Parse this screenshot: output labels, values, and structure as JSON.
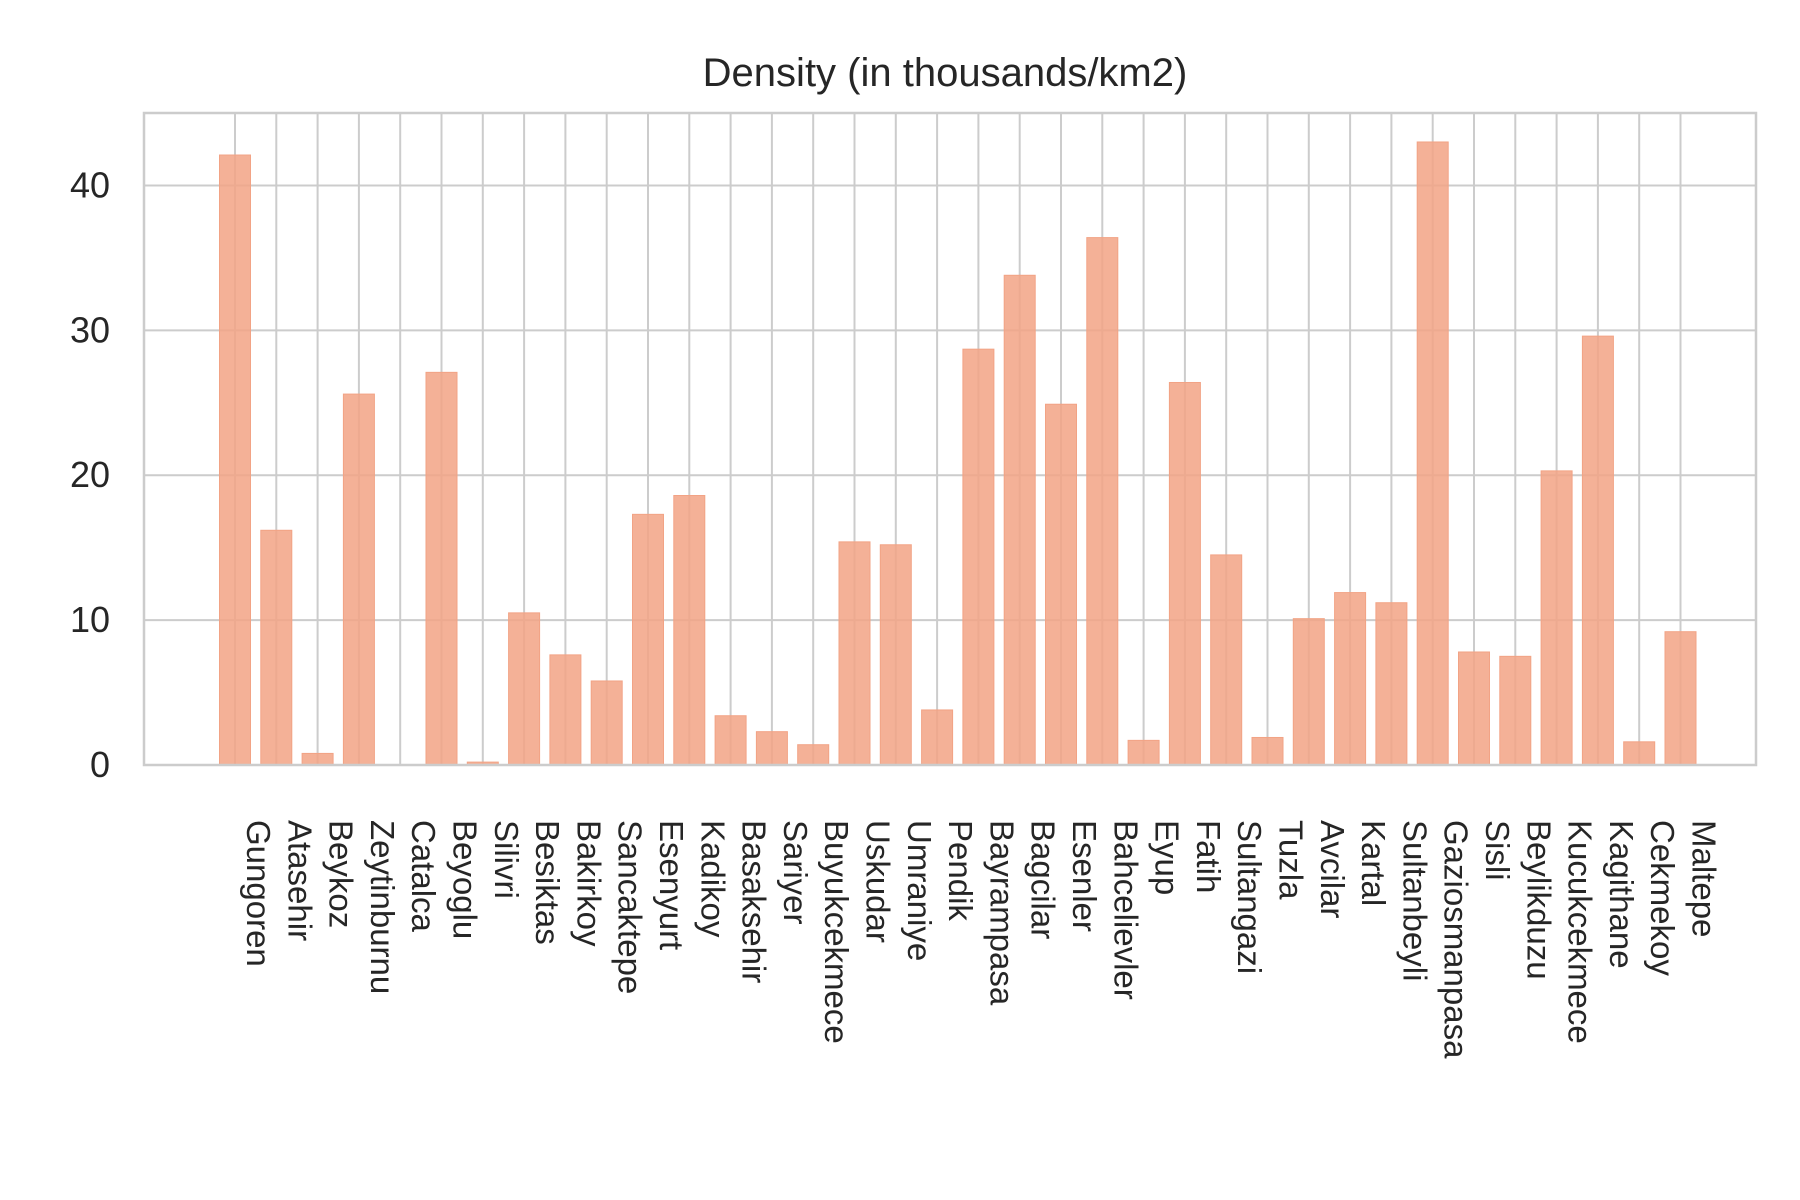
{
  "chart_data": {
    "type": "bar",
    "title": "Density (in thousands/km2)",
    "xlabel": "",
    "ylabel": "",
    "ylim": [
      0,
      45
    ],
    "yticks": [
      0,
      10,
      20,
      30,
      40
    ],
    "grid": true,
    "bar_color": "#f2a385",
    "categories": [
      "Gungoren",
      "Atasehir",
      "Beykoz",
      "Zeytinburnu",
      "Catalca",
      "Beyoglu",
      "Silivri",
      "Besiktas",
      "Bakirkoy",
      "Sancaktepe",
      "Esenyurt",
      "Kadikoy",
      "Basaksehir",
      "Sariyer",
      "Buyukcekmece",
      "Uskudar",
      "Umraniye",
      "Pendik",
      "Bayrampasa",
      "Bagcilar",
      "Esenler",
      "Bahcelievler",
      "Eyup",
      "Fatih",
      "Sultangazi",
      "Tuzla",
      "Avcilar",
      "Kartal",
      "Sultanbeyli",
      "Gaziosmanpasa",
      "Sisli",
      "Beylikduzu",
      "Kucukcekmece",
      "Kagithane",
      "Cekmekoy",
      "Maltepe"
    ],
    "values": [
      42.1,
      16.2,
      0.8,
      25.6,
      0.0,
      27.1,
      0.2,
      10.5,
      7.6,
      5.8,
      17.3,
      18.6,
      3.4,
      2.3,
      1.4,
      15.4,
      15.2,
      3.8,
      28.7,
      33.8,
      24.9,
      36.4,
      1.7,
      26.4,
      14.5,
      1.9,
      10.1,
      11.9,
      11.2,
      43.0,
      7.8,
      7.5,
      20.3,
      29.6,
      1.6,
      9.2
    ]
  }
}
